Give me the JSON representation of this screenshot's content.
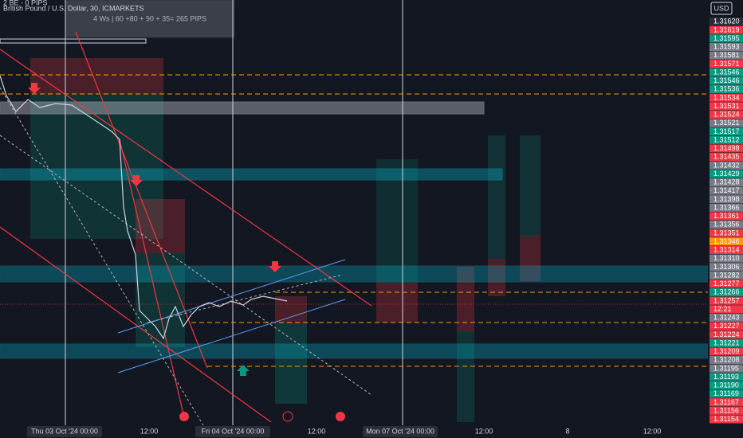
{
  "header": {
    "symbol": "British Pound / U.S. Dollar, 30, ICMARKETS",
    "note_top": "2 BE - 0 PIPS",
    "note_box": "4 Ws | 60 +80 + 90 + 35= 265 PIPS",
    "currency": "USD"
  },
  "price_scale": {
    "labels": [
      {
        "label": "1.31620",
        "kind": "dark"
      },
      {
        "label": "1.31619",
        "kind": "red"
      },
      {
        "label": "1.31595",
        "kind": "green"
      },
      {
        "label": "1.31593",
        "kind": "gray"
      },
      {
        "label": "1.31581",
        "kind": "gray"
      },
      {
        "label": "1.31571",
        "kind": "red"
      },
      {
        "label": "1.31546",
        "kind": "green"
      },
      {
        "label": "1.31546",
        "kind": "green"
      },
      {
        "label": "1.31536",
        "kind": "green"
      },
      {
        "label": "1.31534",
        "kind": "red"
      },
      {
        "label": "1.31531",
        "kind": "red"
      },
      {
        "label": "1.31524",
        "kind": "red"
      },
      {
        "label": "1.31521",
        "kind": "gray"
      },
      {
        "label": "1.31517",
        "kind": "green"
      },
      {
        "label": "1.31512",
        "kind": "green"
      },
      {
        "label": "1.31498",
        "kind": "red"
      },
      {
        "label": "1.31435",
        "kind": "red"
      },
      {
        "label": "1.31432",
        "kind": "gray"
      },
      {
        "label": "1.31429",
        "kind": "green"
      },
      {
        "label": "1.31428",
        "kind": "gray"
      },
      {
        "label": "1.31417",
        "kind": "gray"
      },
      {
        "label": "1.31398",
        "kind": "gray"
      },
      {
        "label": "1.31366",
        "kind": "gray"
      },
      {
        "label": "1.31361",
        "kind": "red"
      },
      {
        "label": "1.31356",
        "kind": "gray"
      },
      {
        "label": "1.31351",
        "kind": "red"
      },
      {
        "label": "1.31346",
        "kind": "orange"
      },
      {
        "label": "1.31314",
        "kind": "red"
      },
      {
        "label": "1.31310",
        "kind": "gray"
      },
      {
        "label": "1.31306",
        "kind": "gray"
      },
      {
        "label": "1.31282",
        "kind": "gray"
      },
      {
        "label": "1.31277",
        "kind": "red"
      },
      {
        "label": "1.31266",
        "kind": "green"
      },
      {
        "label": "1.31257",
        "kind": "red"
      },
      {
        "label": "12:21",
        "kind": "red"
      },
      {
        "label": "1.31243",
        "kind": "gray"
      },
      {
        "label": "1.31227",
        "kind": "red"
      },
      {
        "label": "1.31224",
        "kind": "red"
      },
      {
        "label": "1.31221",
        "kind": "green"
      },
      {
        "label": "1.31209",
        "kind": "red"
      },
      {
        "label": "1.31208",
        "kind": "gray"
      },
      {
        "label": "1.31195",
        "kind": "gray"
      },
      {
        "label": "1.31193",
        "kind": "green"
      },
      {
        "label": "1.31190",
        "kind": "green"
      },
      {
        "label": "1.31169",
        "kind": "green"
      },
      {
        "label": "1.31167",
        "kind": "red"
      },
      {
        "label": "1.31156",
        "kind": "red"
      },
      {
        "label": "1.31154",
        "kind": "red"
      }
    ]
  },
  "time_axis": {
    "labels": [
      "Thu 03 Oct '24   00:00",
      "12:00",
      "Fri 04 Oct '24   00:00",
      "12:00",
      "Mon 07 Oct '24   00:00",
      "12:00",
      "8",
      "12:00"
    ],
    "boxed": [
      true,
      false,
      true,
      false,
      true,
      false,
      false,
      false
    ]
  }
}
